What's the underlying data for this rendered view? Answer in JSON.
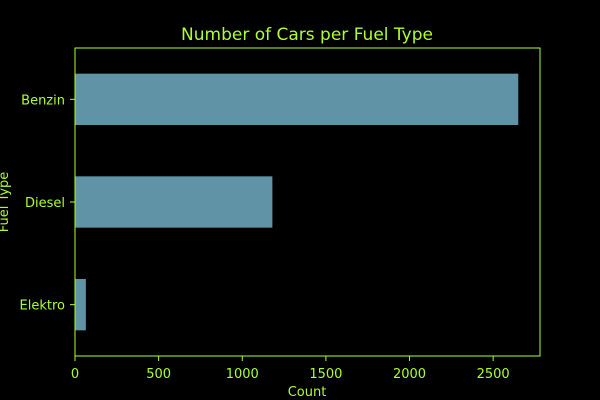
{
  "colors": {
    "background": "#000000",
    "text": "#adff2f",
    "axes": "#adff2f",
    "bar": "#5f93a5"
  },
  "chart_data": {
    "type": "bar",
    "orientation": "horizontal",
    "title": "Number of Cars per Fuel Type",
    "xlabel": "Count",
    "ylabel": "Fuel Type",
    "categories": [
      "Benzin",
      "Diesel",
      "Elektro"
    ],
    "values": [
      2650,
      1180,
      65
    ],
    "xlim": [
      0,
      2780
    ],
    "xticks": [
      0,
      500,
      1000,
      1500,
      2000,
      2500
    ],
    "grid": false,
    "legend": "none"
  }
}
